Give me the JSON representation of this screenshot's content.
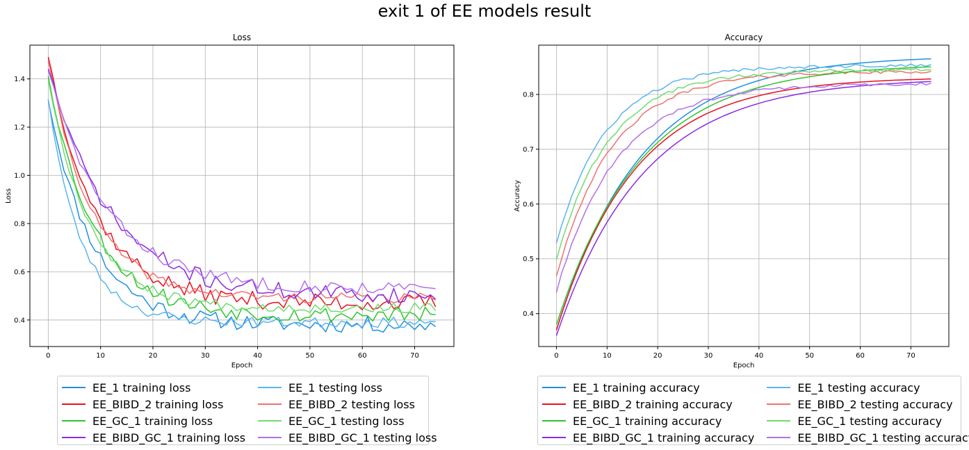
{
  "figure": {
    "title": "exit 1 of EE models result"
  },
  "chart_data": [
    {
      "type": "line",
      "title": "Loss",
      "xlabel": "Epoch",
      "ylabel": "Loss",
      "xlim": [
        -3.5,
        77.5
      ],
      "ylim": [
        0.29,
        1.54
      ],
      "xticks": [
        0,
        10,
        20,
        30,
        40,
        50,
        60,
        70
      ],
      "yticks": [
        0.4,
        0.6,
        0.8,
        1.0,
        1.2,
        1.4
      ],
      "grid": true,
      "legend_position": "below",
      "series": [
        {
          "name": "EE_1 training loss",
          "color": "#1f8fe0",
          "noise": 0.028,
          "start": 1.32,
          "plateau": 0.38,
          "k": 0.12,
          "seed": 11
        },
        {
          "name": "EE_1 testing loss",
          "color": "#5ab4ef",
          "noise": 0.018,
          "start": 1.32,
          "plateau": 0.39,
          "k": 0.16,
          "seed": 23
        },
        {
          "name": "EE_BIBD_2 training loss",
          "color": "#e8101e",
          "noise": 0.03,
          "start": 1.5,
          "plateau": 0.47,
          "k": 0.11,
          "seed": 37
        },
        {
          "name": "EE_BIBD_2 testing loss",
          "color": "#f07070",
          "noise": 0.018,
          "start": 1.48,
          "plateau": 0.49,
          "k": 0.12,
          "seed": 41
        },
        {
          "name": "EE_GC_1 training loss",
          "color": "#2ec42e",
          "noise": 0.028,
          "start": 1.42,
          "plateau": 0.42,
          "k": 0.115,
          "seed": 53
        },
        {
          "name": "EE_GC_1 testing loss",
          "color": "#70dc70",
          "noise": 0.018,
          "start": 1.4,
          "plateau": 0.45,
          "k": 0.125,
          "seed": 67
        },
        {
          "name": "EE_BIBD_GC_1 training loss",
          "color": "#8a2be2",
          "noise": 0.03,
          "start": 1.45,
          "plateau": 0.5,
          "k": 0.085,
          "seed": 71
        },
        {
          "name": "EE_BIBD_GC_1 testing loss",
          "color": "#b070ec",
          "noise": 0.022,
          "start": 1.44,
          "plateau": 0.53,
          "k": 0.09,
          "seed": 83
        }
      ]
    },
    {
      "type": "line",
      "title": "Accuracy",
      "xlabel": "Epoch",
      "ylabel": "Accuracy",
      "xlim": [
        -3.5,
        77.5
      ],
      "ylim": [
        0.34,
        0.89
      ],
      "xticks": [
        0,
        10,
        20,
        30,
        40,
        50,
        60,
        70
      ],
      "yticks": [
        0.4,
        0.5,
        0.6,
        0.7,
        0.8
      ],
      "grid": true,
      "legend_position": "below",
      "series": [
        {
          "name": "EE_1 training accuracy",
          "color": "#1f8fe0",
          "noise": 0.0,
          "start": 0.37,
          "plateau": 0.871,
          "k": 0.06,
          "seed": 12
        },
        {
          "name": "EE_1 testing accuracy",
          "color": "#5ab4ef",
          "noise": 0.003,
          "start": 0.53,
          "plateau": 0.853,
          "k": 0.1,
          "seed": 24
        },
        {
          "name": "EE_BIBD_2 training accuracy",
          "color": "#e8101e",
          "noise": 0.0,
          "start": 0.37,
          "plateau": 0.832,
          "k": 0.065,
          "seed": 38
        },
        {
          "name": "EE_BIBD_2 testing accuracy",
          "color": "#f07070",
          "noise": 0.003,
          "start": 0.47,
          "plateau": 0.842,
          "k": 0.09,
          "seed": 42
        },
        {
          "name": "EE_GC_1 training accuracy",
          "color": "#2ec42e",
          "noise": 0.0,
          "start": 0.38,
          "plateau": 0.856,
          "k": 0.06,
          "seed": 54
        },
        {
          "name": "EE_GC_1 testing accuracy",
          "color": "#70dc70",
          "noise": 0.003,
          "start": 0.5,
          "plateau": 0.845,
          "k": 0.095,
          "seed": 68
        },
        {
          "name": "EE_BIBD_GC_1 training accuracy",
          "color": "#8a2be2",
          "noise": 0.0,
          "start": 0.36,
          "plateau": 0.83,
          "k": 0.058,
          "seed": 72
        },
        {
          "name": "EE_BIBD_GC_1 testing accuracy",
          "color": "#b070ec",
          "noise": 0.003,
          "start": 0.44,
          "plateau": 0.82,
          "k": 0.085,
          "seed": 84
        }
      ]
    }
  ]
}
